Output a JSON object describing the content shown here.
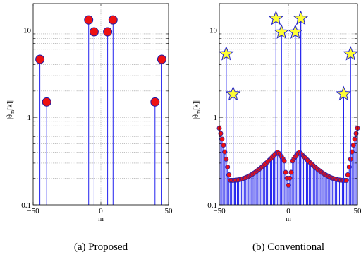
{
  "chart_data": [
    {
      "type": "stem",
      "caption": "(a)  Proposed",
      "xlabel": "m",
      "ylabel": "|θm[k]|",
      "ylabel_main": "|θ",
      "ylabel_sub": "m",
      "ylabel_tail": "[k]|",
      "xlim": [
        -50,
        50
      ],
      "ylim": [
        0.1,
        20
      ],
      "yscale": "log",
      "grid": true,
      "x_ticks": [
        -50,
        0,
        50
      ],
      "x_tick_labels": [
        "−50",
        "0",
        "50"
      ],
      "y_ticks": [
        0.1,
        1,
        10
      ],
      "y_tick_labels": [
        "0.1",
        "1",
        "10"
      ],
      "marker": "circle",
      "marker_color": "#ee1111",
      "stem_color": "#2222ee",
      "x": [
        -45,
        -40,
        -9,
        -5,
        5,
        9,
        40,
        45
      ],
      "y": [
        4.6,
        1.5,
        13.0,
        9.5,
        9.5,
        13.0,
        1.5,
        4.6
      ]
    },
    {
      "type": "stem",
      "caption": "(b)  Conventional",
      "xlabel": "m",
      "ylabel": "|θm[k]|",
      "ylabel_main": "|θ",
      "ylabel_sub": "m",
      "ylabel_tail": "[k]|",
      "xlim": [
        -50,
        50
      ],
      "ylim": [
        0.1,
        20
      ],
      "yscale": "log",
      "grid": true,
      "x_ticks": [
        -50,
        0,
        50
      ],
      "x_tick_labels": [
        "−50",
        "0",
        "50"
      ],
      "y_ticks": [
        0.1,
        1,
        10
      ],
      "y_tick_labels": [
        "0.1",
        "1",
        "10"
      ],
      "marker": "circle",
      "marker_color": "#ee1111",
      "stem_color": "#2222ee",
      "star_color": "#ffff33",
      "x_range": [
        -50,
        50
      ],
      "background": {
        "min": 0.19,
        "peak": 0.4,
        "edge": 0.75
      },
      "stars_x": [
        -45,
        -40,
        -9,
        -5,
        5,
        9,
        40,
        45
      ],
      "stars_y": [
        5.3,
        1.85,
        13.5,
        9.4,
        9.4,
        13.5,
        1.85,
        5.3
      ]
    }
  ]
}
